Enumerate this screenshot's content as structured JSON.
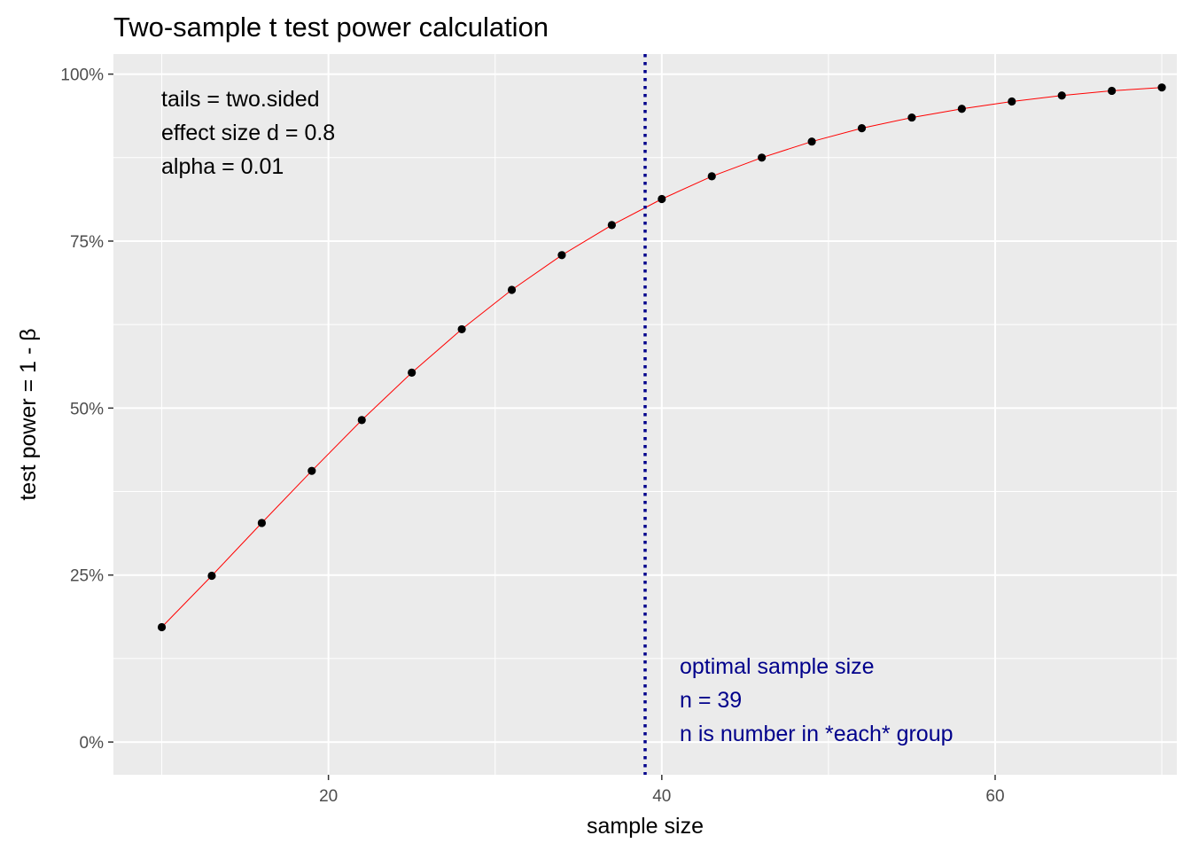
{
  "chart_data": {
    "type": "line",
    "title": "Two-sample t test power calculation",
    "xlabel": "sample size",
    "ylabel": "test power = 1 - β",
    "xlim": [
      7.1,
      70.9
    ],
    "ylim": [
      -0.049,
      1.03
    ],
    "x_ticks": [
      20,
      40,
      60
    ],
    "x_tick_labels": [
      "20",
      "40",
      "60"
    ],
    "x_minor_ticks": [
      10,
      30,
      50,
      70
    ],
    "y_ticks": [
      0,
      0.25,
      0.5,
      0.75,
      1.0
    ],
    "y_tick_labels": [
      "0%",
      "25%",
      "50%",
      "75%",
      "100%"
    ],
    "y_minor_ticks": [
      0.125,
      0.375,
      0.625,
      0.875
    ],
    "grid": true,
    "series": [
      {
        "line_color": "#ff0000",
        "point_color": "#000000",
        "x": [
          10,
          13,
          16,
          19,
          22,
          25,
          28,
          31,
          34,
          37,
          40,
          43,
          46,
          49,
          52,
          55,
          58,
          61,
          64,
          67,
          70
        ],
        "y": [
          0.172,
          0.249,
          0.328,
          0.406,
          0.482,
          0.553,
          0.618,
          0.677,
          0.729,
          0.774,
          0.813,
          0.847,
          0.875,
          0.899,
          0.919,
          0.935,
          0.948,
          0.959,
          0.968,
          0.975,
          0.98
        ]
      }
    ],
    "vline": {
      "x": 39,
      "color": "#00008b",
      "style": "dotted"
    },
    "annotations": {
      "parameters": [
        "tails = two.sided",
        "effect size d = 0.8",
        "alpha = 0.01"
      ],
      "optimal": [
        "optimal sample size",
        "n = 39",
        "n is number in *each* group"
      ]
    },
    "colors": {
      "panel_background": "#ebebeb",
      "grid": "#ffffff",
      "annotation_blue": "#00008b"
    }
  }
}
